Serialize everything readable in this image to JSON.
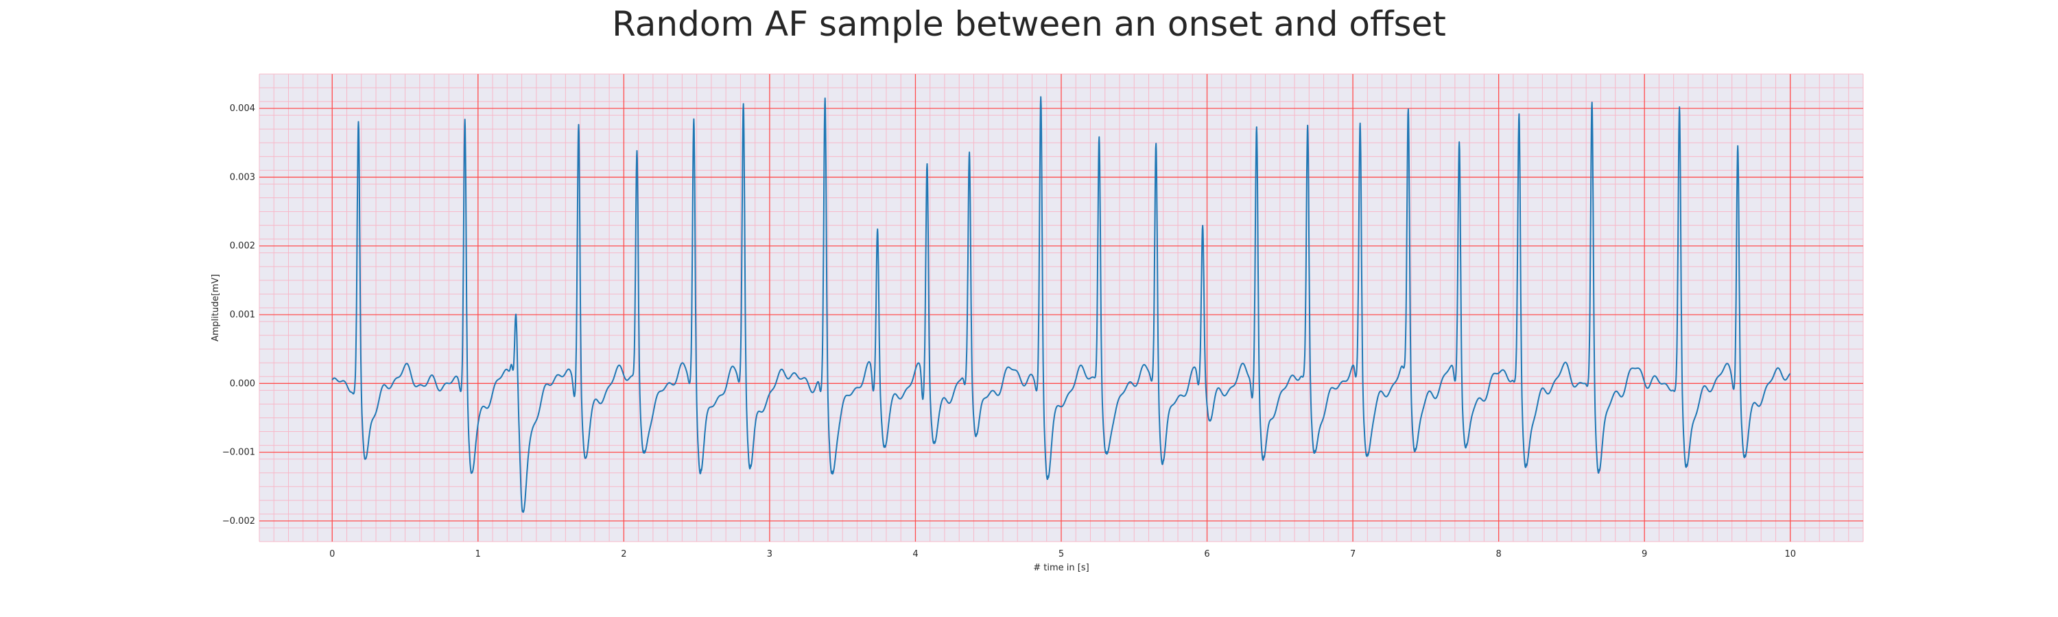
{
  "chart_data": {
    "type": "line",
    "title": "Random AF sample between an onset and offset",
    "xlabel": "# time in [s]",
    "ylabel": "Amplitude[mV]",
    "xlim": [
      -0.5,
      10.5
    ],
    "ylim": [
      -0.0023,
      0.0045
    ],
    "x_ticks": [
      0,
      1,
      2,
      3,
      4,
      5,
      6,
      7,
      8,
      9,
      10
    ],
    "x_tick_labels": [
      "0",
      "1",
      "2",
      "3",
      "4",
      "5",
      "6",
      "7",
      "8",
      "9",
      "10"
    ],
    "y_ticks": [
      -0.002,
      -0.001,
      0.0,
      0.001,
      0.002,
      0.003,
      0.004
    ],
    "y_tick_labels": [
      "−0.002",
      "−0.001",
      "0.000",
      "0.001",
      "0.002",
      "0.003",
      "0.004"
    ],
    "grid": true,
    "grid_major_color": "#ff4d4d",
    "grid_minor_color": "#f7b8c8",
    "background_color": "#eae9f2",
    "series": [
      {
        "color": "#1f77b4",
        "sampling_rate_hz": 100,
        "x_start": 0.0,
        "beats": [
          {
            "t": 0.18,
            "peak": 0.00375,
            "pre": -0.0001,
            "post": -0.0011
          },
          {
            "t": 0.91,
            "peak": 0.00402,
            "pre": -0.0001,
            "post": -0.00135
          },
          {
            "t": 1.26,
            "peak": 0.00102,
            "pre": 0.0002,
            "post": -0.00198
          },
          {
            "t": 1.69,
            "peak": 0.00388,
            "pre": -0.0002,
            "post": -0.00105
          },
          {
            "t": 2.09,
            "peak": 0.00338,
            "pre": 0.0,
            "post": -0.00108
          },
          {
            "t": 2.48,
            "peak": 0.00387,
            "pre": -0.0001,
            "post": -0.00122
          },
          {
            "t": 2.82,
            "peak": 0.00401,
            "pre": -0.0001,
            "post": -0.00126
          },
          {
            "t": 3.38,
            "peak": 0.00418,
            "pre": -0.0002,
            "post": -0.00132
          },
          {
            "t": 3.74,
            "peak": 0.00223,
            "pre": -0.0003,
            "post": -0.00088
          },
          {
            "t": 4.08,
            "peak": 0.00318,
            "pre": -0.0004,
            "post": -0.00092
          },
          {
            "t": 4.37,
            "peak": 0.00318,
            "pre": -0.0002,
            "post": -0.00082
          },
          {
            "t": 4.86,
            "peak": 0.00426,
            "pre": -0.0001,
            "post": -0.00132
          },
          {
            "t": 5.26,
            "peak": 0.0036,
            "pre": 0.0,
            "post": -0.0011
          },
          {
            "t": 5.65,
            "peak": 0.0035,
            "pre": -0.0001,
            "post": -0.00108
          },
          {
            "t": 5.97,
            "peak": 0.00217,
            "pre": -0.0002,
            "post": -0.00055
          },
          {
            "t": 6.34,
            "peak": 0.0037,
            "pre": -0.0003,
            "post": -0.00118
          },
          {
            "t": 6.69,
            "peak": 0.00361,
            "pre": -0.0001,
            "post": -0.00108
          },
          {
            "t": 7.05,
            "peak": 0.00374,
            "pre": -0.0002,
            "post": -0.00105
          },
          {
            "t": 7.38,
            "peak": 0.00388,
            "pre": -0.0001,
            "post": -0.001
          },
          {
            "t": 7.73,
            "peak": 0.00355,
            "pre": -0.0002,
            "post": -0.001
          },
          {
            "t": 8.14,
            "peak": 0.00386,
            "pre": -0.0001,
            "post": -0.00118
          },
          {
            "t": 8.64,
            "peak": 0.00406,
            "pre": -0.0001,
            "post": -0.00118
          },
          {
            "t": 9.24,
            "peak": 0.00395,
            "pre": -0.0001,
            "post": -0.00118
          },
          {
            "t": 9.64,
            "peak": 0.00356,
            "pre": -0.0001,
            "post": -0.00108
          }
        ],
        "end": 10.0
      }
    ]
  }
}
